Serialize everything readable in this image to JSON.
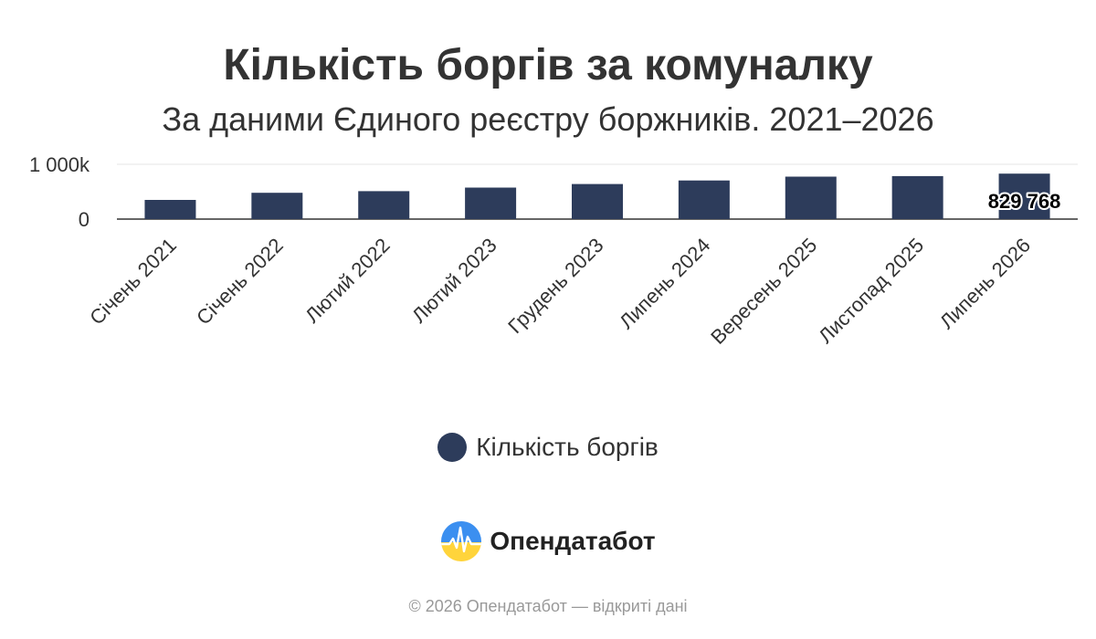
{
  "chart_data": {
    "type": "bar",
    "title": "Кількість боргів за комуналку",
    "subtitle": "За даними Єдиного реєстру боржників. 2021–2026",
    "categories": [
      "Січень 2021",
      "Січень 2022",
      "Лютий 2022",
      "Лютий 2023",
      "Грудень 2023",
      "Липень 2024",
      "Вересень 2025",
      "Листопад 2025",
      "Липень 2026"
    ],
    "series": [
      {
        "name": "Кількість боргів",
        "color": "#2d3c5b",
        "values": [
          350000,
          480000,
          510000,
          575000,
          640000,
          705000,
          775000,
          785000,
          829768
        ]
      }
    ],
    "data_labels": [
      {
        "index": 8,
        "text": "829 768"
      }
    ],
    "y_ticks": [
      "0",
      "1 000k"
    ],
    "ylim": [
      0,
      1000000
    ],
    "grid": true,
    "legend": "bottom"
  },
  "branding": {
    "name": "Опендатабот",
    "logo_icon": "opendatabot-logo-icon"
  },
  "footer": {
    "text": "© 2026 Опендатабот — відкриті дані"
  }
}
